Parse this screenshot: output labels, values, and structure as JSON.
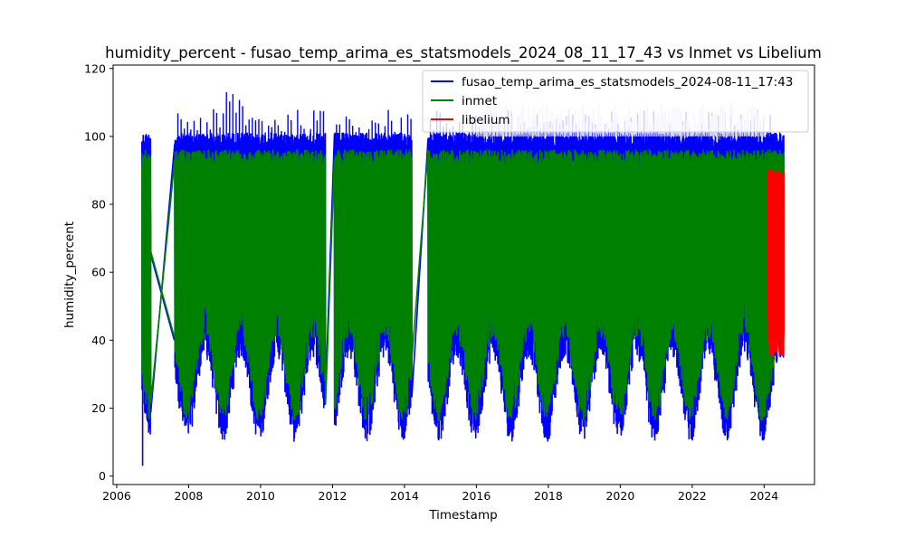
{
  "chart_data": {
    "type": "line",
    "title": "humidity_percent - fusao_temp_arima_es_statsmodels_2024_08_11_17_43 vs Inmet vs Libelium",
    "xlabel": "Timestamp",
    "ylabel": "humidity_percent",
    "xlim": [
      2005.9,
      2025.4
    ],
    "ylim": [
      -2.5,
      121
    ],
    "x_ticks": [
      2006,
      2008,
      2010,
      2012,
      2014,
      2016,
      2018,
      2020,
      2022,
      2024
    ],
    "y_ticks": [
      0,
      20,
      40,
      60,
      80,
      100,
      120
    ],
    "grid": false,
    "legend_position": "top-right",
    "series": [
      {
        "name": "fusao_temp_arima_es_statsmodels_2024-08-11_17:43",
        "color": "#0000ff",
        "min": 3,
        "max": 116,
        "gaps": [
          [
            2006.95,
            2007.6
          ],
          [
            2011.8,
            2012.05
          ],
          [
            2014.2,
            2014.65
          ]
        ],
        "x_start": 2006.7,
        "x_end": 2024.55
      },
      {
        "name": "inmet",
        "color": "#008000",
        "min": 12,
        "max": 98,
        "gaps": [
          [
            2006.95,
            2007.6
          ],
          [
            2011.8,
            2012.05
          ],
          [
            2014.2,
            2014.65
          ]
        ],
        "x_start": 2006.7,
        "x_end": 2024.55
      },
      {
        "name": "libelium",
        "color": "#ff0000",
        "min": 34,
        "max": 99,
        "gaps": [],
        "x_start": 2024.1,
        "x_end": 2024.55
      }
    ]
  }
}
